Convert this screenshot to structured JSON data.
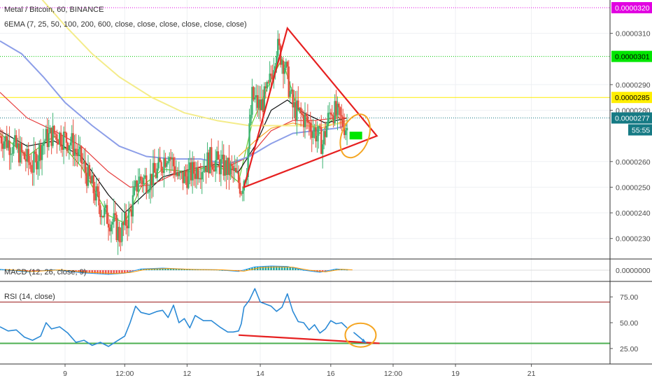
{
  "chart_data": {
    "type": "candlestick",
    "title": "Metal / Bitcoin, 60, BINANCE",
    "indicator": "6EMA (7, 25, 50, 100, 200, 600, close, close, close, close, close, close)",
    "macd_label": "MACD (12, 26, close, 9)",
    "rsi_label": "RSI (14, close)",
    "price_axis": {
      "ylim": [
        2.22e-05,
        3.23e-05
      ],
      "ticks": [
        "0.0000310",
        "0.0000290",
        "0.0000280",
        "0.0000260",
        "0.0000250",
        "0.0000240",
        "0.0000230"
      ]
    },
    "price_tags": [
      {
        "label": "0.0000320",
        "value": 3.2e-05,
        "color": "#e100e1",
        "text_color": "#ffffff"
      },
      {
        "label": "0.0000301",
        "value": 3.01e-05,
        "color": "#00e600",
        "text_color": "#000000"
      },
      {
        "label": "0.0000285",
        "value": 2.85e-05,
        "color": "#ffee00",
        "text_color": "#000000"
      },
      {
        "label": "0.0000277",
        "value": 2.77e-05,
        "color": "#167a84",
        "text_color": "#ffffff"
      }
    ],
    "countdown": "55:55",
    "macd_axis": {
      "ticks": [
        "0.0000000"
      ]
    },
    "rsi_axis": {
      "ylim": [
        10,
        90
      ],
      "ticks": [
        "75.00",
        "50.00",
        "25.00"
      ],
      "overbought": 70,
      "oversold": 30
    },
    "x_axis": {
      "range": [
        0,
        225
      ],
      "ticks": [
        {
          "label": "9",
          "t": 24
        },
        {
          "label": "12:00",
          "t": 46
        },
        {
          "label": "12",
          "t": 69
        },
        {
          "label": "14",
          "t": 96
        },
        {
          "label": "16",
          "t": 122
        },
        {
          "label": "12:00",
          "t": 145
        },
        {
          "label": "19",
          "t": 168
        },
        {
          "label": "21",
          "t": 196
        }
      ]
    },
    "price_series": [
      [
        0,
        2.7e-05
      ],
      [
        6,
        2.65e-05
      ],
      [
        12,
        2.58e-05
      ],
      [
        16,
        2.68e-05
      ],
      [
        20,
        2.71e-05
      ],
      [
        26,
        2.68e-05
      ],
      [
        30,
        2.6e-05
      ],
      [
        34,
        2.5e-05
      ],
      [
        38,
        2.4e-05
      ],
      [
        42,
        2.36e-05
      ],
      [
        44,
        2.31e-05
      ],
      [
        48,
        2.4e-05
      ],
      [
        51,
        2.53e-05
      ],
      [
        55,
        2.53e-05
      ],
      [
        58,
        2.56e-05
      ],
      [
        62,
        2.64e-05
      ],
      [
        66,
        2.53e-05
      ],
      [
        70,
        2.55e-05
      ],
      [
        74,
        2.58e-05
      ],
      [
        78,
        2.61e-05
      ],
      [
        82,
        2.58e-05
      ],
      [
        86,
        2.56e-05
      ],
      [
        89,
        2.5e-05
      ],
      [
        91,
        2.58e-05
      ],
      [
        93,
        2.85e-05
      ],
      [
        96,
        2.81e-05
      ],
      [
        99,
        2.88e-05
      ],
      [
        102,
        3.05e-05
      ],
      [
        105,
        2.98e-05
      ],
      [
        108,
        2.81e-05
      ],
      [
        112,
        2.77e-05
      ],
      [
        116,
        2.72e-05
      ],
      [
        119,
        2.67e-05
      ],
      [
        122,
        2.81e-05
      ],
      [
        125,
        2.77e-05
      ],
      [
        128,
        2.73e-05
      ]
    ],
    "ema_series": [
      {
        "name": "EMA 7",
        "color": "#66cc33",
        "points": [
          [
            0,
            2.71e-05
          ],
          [
            10,
            2.62e-05
          ],
          [
            20,
            2.7e-05
          ],
          [
            30,
            2.58e-05
          ],
          [
            40,
            2.39e-05
          ],
          [
            46,
            2.36e-05
          ],
          [
            52,
            2.5e-05
          ],
          [
            60,
            2.57e-05
          ],
          [
            70,
            2.56e-05
          ],
          [
            80,
            2.59e-05
          ],
          [
            88,
            2.52e-05
          ],
          [
            93,
            2.75e-05
          ],
          [
            100,
            2.92e-05
          ],
          [
            104,
            3e-05
          ],
          [
            110,
            2.8e-05
          ],
          [
            118,
            2.71e-05
          ],
          [
            124,
            2.78e-05
          ],
          [
            128,
            2.74e-05
          ]
        ]
      },
      {
        "name": "EMA 25",
        "color": "#111111",
        "points": [
          [
            0,
            2.72e-05
          ],
          [
            10,
            2.66e-05
          ],
          [
            20,
            2.68e-05
          ],
          [
            30,
            2.62e-05
          ],
          [
            40,
            2.47e-05
          ],
          [
            46,
            2.4e-05
          ],
          [
            52,
            2.46e-05
          ],
          [
            60,
            2.54e-05
          ],
          [
            70,
            2.57e-05
          ],
          [
            80,
            2.59e-05
          ],
          [
            88,
            2.56e-05
          ],
          [
            94,
            2.66e-05
          ],
          [
            100,
            2.8e-05
          ],
          [
            106,
            2.84e-05
          ],
          [
            112,
            2.79e-05
          ],
          [
            120,
            2.75e-05
          ],
          [
            128,
            2.77e-05
          ]
        ]
      },
      {
        "name": "EMA 50",
        "color": "#e63c3c",
        "points": [
          [
            0,
            2.87e-05
          ],
          [
            10,
            2.77e-05
          ],
          [
            20,
            2.72e-05
          ],
          [
            30,
            2.66e-05
          ],
          [
            40,
            2.56e-05
          ],
          [
            48,
            2.5e-05
          ],
          [
            56,
            2.51e-05
          ],
          [
            64,
            2.55e-05
          ],
          [
            74,
            2.58e-05
          ],
          [
            84,
            2.58e-05
          ],
          [
            92,
            2.62e-05
          ],
          [
            100,
            2.72e-05
          ],
          [
            108,
            2.76e-05
          ],
          [
            116,
            2.76e-05
          ],
          [
            124,
            2.77e-05
          ],
          [
            128,
            2.77e-05
          ]
        ]
      },
      {
        "name": "EMA 100",
        "color": "#f5a623",
        "points": [
          [
            88,
            2.62e-05
          ],
          [
            94,
            2.68e-05
          ],
          [
            100,
            2.73e-05
          ],
          [
            108,
            2.75e-05
          ],
          [
            118,
            2.73e-05
          ],
          [
            128,
            2.76e-05
          ]
        ]
      },
      {
        "name": "EMA 200",
        "color": "#8c9ee8",
        "points": [
          [
            0,
            3.07e-05
          ],
          [
            8,
            3.02e-05
          ],
          [
            16,
            2.93e-05
          ],
          [
            24,
            2.83e-05
          ],
          [
            34,
            2.74e-05
          ],
          [
            44,
            2.66e-05
          ],
          [
            54,
            2.62e-05
          ],
          [
            64,
            2.61e-05
          ],
          [
            74,
            2.61e-05
          ],
          [
            84,
            2.59e-05
          ],
          [
            92,
            2.62e-05
          ],
          [
            100,
            2.67e-05
          ],
          [
            108,
            2.71e-05
          ],
          [
            116,
            2.72e-05
          ],
          [
            124,
            2.73e-05
          ],
          [
            128,
            2.74e-05
          ]
        ]
      },
      {
        "name": "EMA 600",
        "color": "#f4ec8a",
        "points": [
          [
            14,
            3.25e-05
          ],
          [
            24,
            3.13e-05
          ],
          [
            34,
            3.02e-05
          ],
          [
            44,
            2.93e-05
          ],
          [
            56,
            2.85e-05
          ],
          [
            68,
            2.79e-05
          ],
          [
            80,
            2.76e-05
          ],
          [
            92,
            2.74e-05
          ],
          [
            104,
            2.74e-05
          ],
          [
            116,
            2.74e-05
          ],
          [
            128,
            2.75e-05
          ]
        ]
      }
    ],
    "rsi_series": [
      [
        0,
        46
      ],
      [
        3,
        42
      ],
      [
        6,
        43
      ],
      [
        9,
        36
      ],
      [
        12,
        33
      ],
      [
        15,
        37
      ],
      [
        17,
        50
      ],
      [
        19,
        44
      ],
      [
        22,
        46
      ],
      [
        25,
        40
      ],
      [
        28,
        31
      ],
      [
        31,
        33
      ],
      [
        34,
        28
      ],
      [
        37,
        31
      ],
      [
        40,
        27
      ],
      [
        43,
        32
      ],
      [
        46,
        37
      ],
      [
        48,
        50
      ],
      [
        50,
        66
      ],
      [
        52,
        60
      ],
      [
        55,
        58
      ],
      [
        58,
        61
      ],
      [
        60,
        62
      ],
      [
        62,
        55
      ],
      [
        64,
        67
      ],
      [
        66,
        50
      ],
      [
        68,
        54
      ],
      [
        70,
        45
      ],
      [
        72,
        57
      ],
      [
        75,
        52
      ],
      [
        78,
        52
      ],
      [
        81,
        46
      ],
      [
        84,
        41
      ],
      [
        86,
        41
      ],
      [
        88,
        42
      ],
      [
        89,
        49
      ],
      [
        90,
        65
      ],
      [
        92,
        72
      ],
      [
        94,
        83
      ],
      [
        96,
        70
      ],
      [
        98,
        68
      ],
      [
        100,
        66
      ],
      [
        102,
        61
      ],
      [
        104,
        65
      ],
      [
        106,
        78
      ],
      [
        108,
        61
      ],
      [
        110,
        51
      ],
      [
        112,
        50
      ],
      [
        114,
        43
      ],
      [
        116,
        48
      ],
      [
        118,
        40
      ],
      [
        120,
        44
      ],
      [
        122,
        52
      ],
      [
        124,
        49
      ],
      [
        126,
        50
      ],
      [
        128,
        45
      ]
    ],
    "macd_series": [
      [
        0,
        0.2
      ],
      [
        10,
        -0.4
      ],
      [
        20,
        0.1
      ],
      [
        30,
        -0.6
      ],
      [
        40,
        -1.0
      ],
      [
        46,
        -0.7
      ],
      [
        52,
        0.3
      ],
      [
        60,
        0.5
      ],
      [
        70,
        0.2
      ],
      [
        80,
        0.1
      ],
      [
        88,
        -0.3
      ],
      [
        94,
        0.8
      ],
      [
        100,
        1.0
      ],
      [
        106,
        0.9
      ],
      [
        112,
        0.0
      ],
      [
        118,
        -0.5
      ],
      [
        124,
        0.3
      ],
      [
        128,
        0.1
      ]
    ],
    "horizontal_lines": [
      {
        "value": 3.2e-05,
        "color": "#e100e1",
        "style": "dotted"
      },
      {
        "value": 3.01e-05,
        "color": "#00c800",
        "style": "dotted"
      },
      {
        "value": 2.85e-05,
        "color": "#ffee00",
        "style": "solid"
      },
      {
        "value": 2.77e-05,
        "color": "#167a84",
        "style": "dotted"
      }
    ],
    "annotations": {
      "triangle": {
        "color": "#e62020",
        "points": [
          [
            90,
            2.5e-05
          ],
          [
            106,
            3.12e-05
          ],
          [
            139,
            2.7e-05
          ]
        ]
      },
      "ellipse_price": {
        "color": "#f5a623",
        "center": [
          131,
          2.7e-05
        ],
        "rx_t": 5,
        "ry_value": 4e-07
      },
      "rsi_trend_line": {
        "color": "#e62020",
        "from": [
          88,
          38
        ],
        "to": [
          140,
          30
        ]
      },
      "rsi_ellipse": {
        "color": "#f5a623",
        "center": [
          133,
          38
        ]
      }
    }
  }
}
